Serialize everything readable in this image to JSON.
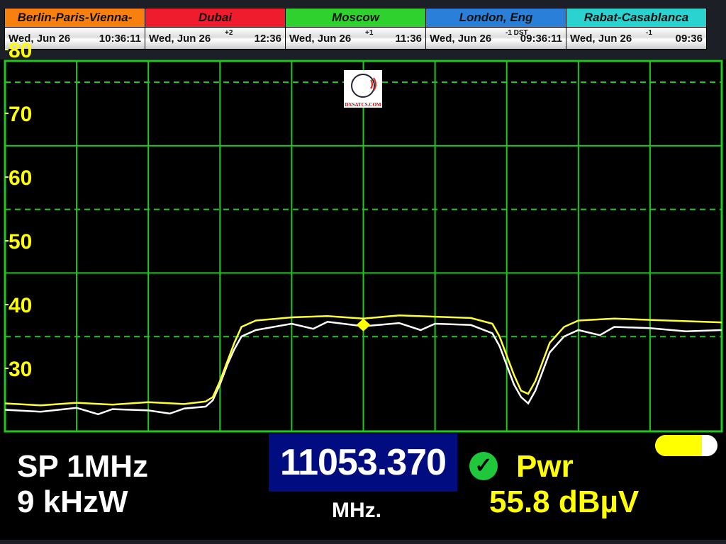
{
  "zones": [
    {
      "name": "Berlin-Paris-Vienna-Roma",
      "color": "#f7800f",
      "date": "Wed, Jun 26",
      "offset": "",
      "time": "10:36:11"
    },
    {
      "name": "Dubai",
      "color": "#ee1c2c",
      "date": "Wed, Jun 26",
      "offset": "+2",
      "time": "12:36"
    },
    {
      "name": "Moscow",
      "color": "#2ed12e",
      "date": "Wed, Jun 26",
      "offset": "+1",
      "time": "11:36"
    },
    {
      "name": "London, Eng",
      "color": "#2a7fd8",
      "date": "Wed, Jun 26",
      "offset": "-1 DST",
      "time": "09:36:11"
    },
    {
      "name": "Rabat-Casablanca",
      "color": "#2ad3cf",
      "date": "Wed, Jun 26",
      "offset": "-1",
      "time": "09:36"
    }
  ],
  "logo": "DXSATCS.COM",
  "status": {
    "span": "SP 1MHz",
    "rbw": "9 kHzW",
    "frequency": "11053.370",
    "freq_unit": "MHz.",
    "lock_icon": "green-check-icon",
    "measure_label": "Pwr",
    "measure_value": "55.8 dBµV",
    "battery_level": 0.75
  },
  "chart_data": {
    "type": "line",
    "ylabel": "",
    "xlabel": "",
    "ylim": [
      23,
      82
    ],
    "xlim": [
      0,
      10
    ],
    "grid": true,
    "yticks": [
      30,
      40,
      50,
      60,
      70,
      80
    ],
    "series": [
      {
        "color": "#ffff33",
        "x": [
          0,
          0.5,
          1,
          1.5,
          2,
          2.5,
          2.8,
          2.9,
          3.0,
          3.1,
          3.2,
          3.3,
          3.5,
          4,
          4.5,
          5,
          5.5,
          6,
          6.5,
          6.8,
          6.9,
          7.0,
          7.1,
          7.2,
          7.3,
          7.4,
          7.5,
          7.6,
          7.8,
          8,
          8.5,
          9,
          9.5,
          10
        ],
        "y": [
          24.5,
          24.2,
          24.6,
          24.3,
          24.7,
          24.4,
          24.8,
          25.5,
          28,
          31,
          34,
          36.5,
          37.5,
          38,
          38.2,
          37.8,
          38.3,
          38.1,
          37.9,
          37,
          35,
          32,
          29,
          26.5,
          26,
          28,
          31,
          34,
          36.5,
          37.5,
          37.8,
          37.6,
          37.4,
          37.2
        ]
      },
      {
        "color": "#ffffff",
        "x": [
          0,
          0.5,
          1,
          1.3,
          1.5,
          2,
          2.3,
          2.5,
          2.8,
          2.9,
          3.0,
          3.1,
          3.2,
          3.3,
          3.5,
          4,
          4.3,
          4.5,
          5,
          5.5,
          5.8,
          6,
          6.5,
          6.8,
          6.9,
          7.0,
          7.1,
          7.2,
          7.3,
          7.4,
          7.5,
          7.6,
          7.8,
          8,
          8.3,
          8.5,
          9,
          9.5,
          10
        ],
        "y": [
          23.5,
          23.2,
          23.8,
          22.8,
          23.6,
          23.4,
          22.9,
          23.7,
          24,
          25,
          27.5,
          30.5,
          33,
          35,
          36,
          37,
          36.2,
          37.3,
          36.6,
          37.1,
          36,
          37,
          36.8,
          35.5,
          33.5,
          30.5,
          27.5,
          25.5,
          24.5,
          26.5,
          29.5,
          32.5,
          35,
          36,
          35.2,
          36.5,
          36.3,
          35.8,
          36
        ]
      }
    ],
    "marker": {
      "x": 5,
      "y": 36.8
    }
  }
}
